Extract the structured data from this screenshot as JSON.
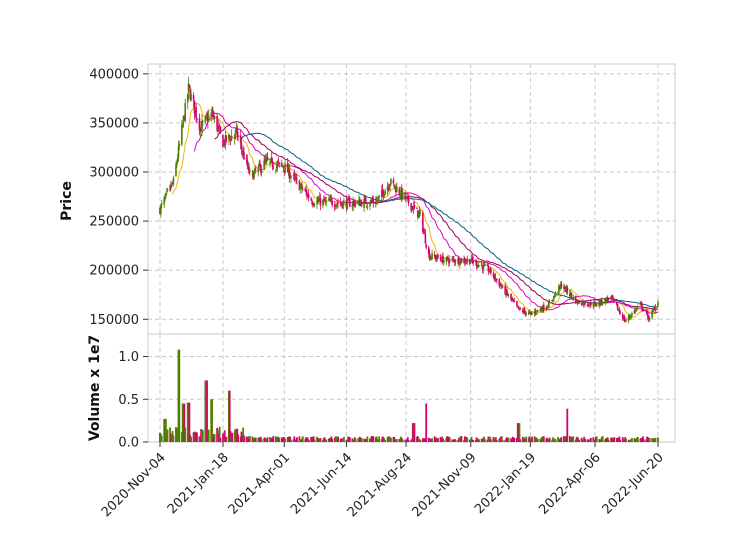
{
  "chart_data": {
    "type": "candlestick",
    "colors": {
      "up": "#4f7f00",
      "down": "#d6006b",
      "ma_short": "#f2b600",
      "ma_mid": "#e000c8",
      "ma_long1": "#9e0050",
      "ma_long2": "#005f86"
    },
    "price_panel": {
      "ylabel": "Price",
      "ylim": [
        135000,
        410000
      ],
      "yticks": [
        150000,
        200000,
        250000,
        300000,
        350000,
        400000
      ],
      "ytick_labels": [
        "150000",
        "200000",
        "250000",
        "300000",
        "350000",
        "400000"
      ]
    },
    "volume_panel": {
      "ylabel": "Volume x 1e7",
      "ylim": [
        0,
        1.2
      ],
      "yticks": [
        0.0,
        0.5,
        1.0
      ],
      "ytick_labels": [
        "0.0",
        "0.5",
        "1.0"
      ]
    },
    "x_ticks": [
      {
        "date": "2020-11-04",
        "label": "2020-Nov-04"
      },
      {
        "date": "2021-01-18",
        "label": "2021-Jan-18"
      },
      {
        "date": "2021-04-01",
        "label": "2021-Apr-01"
      },
      {
        "date": "2021-06-14",
        "label": "2021-Jun-14"
      },
      {
        "date": "2021-08-24",
        "label": "2021-Aug-24"
      },
      {
        "date": "2021-11-09",
        "label": "2021-Nov-09"
      },
      {
        "date": "2022-01-19",
        "label": "2022-Jan-19"
      },
      {
        "date": "2022-04-06",
        "label": "2022-Apr-06"
      },
      {
        "date": "2022-06-20",
        "label": "2022-Jun-20"
      }
    ],
    "close_anchors": [
      [
        "2020-11-04",
        262000
      ],
      [
        "2020-11-20",
        290000
      ],
      [
        "2020-12-08",
        385000
      ],
      [
        "2020-12-22",
        345000
      ],
      [
        "2021-01-05",
        360000
      ],
      [
        "2021-01-18",
        330000
      ],
      [
        "2021-02-03",
        340000
      ],
      [
        "2021-02-20",
        295000
      ],
      [
        "2021-03-10",
        310000
      ],
      [
        "2021-04-01",
        305000
      ],
      [
        "2021-04-15",
        290000
      ],
      [
        "2021-05-05",
        270000
      ],
      [
        "2021-06-14",
        268000
      ],
      [
        "2021-07-20",
        270000
      ],
      [
        "2021-08-05",
        290000
      ],
      [
        "2021-08-24",
        272000
      ],
      [
        "2021-09-10",
        255000
      ],
      [
        "2021-09-20",
        215000
      ],
      [
        "2021-10-10",
        210000
      ],
      [
        "2021-11-09",
        210000
      ],
      [
        "2021-12-01",
        200000
      ],
      [
        "2021-12-20",
        178000
      ],
      [
        "2022-01-05",
        160000
      ],
      [
        "2022-01-19",
        155000
      ],
      [
        "2022-02-10",
        165000
      ],
      [
        "2022-02-25",
        185000
      ],
      [
        "2022-03-15",
        168000
      ],
      [
        "2022-04-06",
        165000
      ],
      [
        "2022-04-25",
        172000
      ],
      [
        "2022-05-12",
        148000
      ],
      [
        "2022-05-30",
        165000
      ],
      [
        "2022-06-10",
        150000
      ],
      [
        "2022-06-20",
        170000
      ]
    ],
    "volume_spikes": [
      [
        "2020-11-10",
        0.27
      ],
      [
        "2020-11-27",
        1.08
      ],
      [
        "2020-12-02",
        0.45
      ],
      [
        "2020-12-08",
        0.46
      ],
      [
        "2020-12-29",
        0.72
      ],
      [
        "2021-01-04",
        0.5
      ],
      [
        "2021-01-25",
        0.6
      ],
      [
        "2021-09-02",
        0.22
      ],
      [
        "2021-09-18",
        0.45
      ],
      [
        "2022-01-05",
        0.22
      ],
      [
        "2022-03-05",
        0.39
      ]
    ],
    "moving_averages": [
      "ma_short",
      "ma_mid",
      "ma_long1",
      "ma_long2"
    ]
  }
}
